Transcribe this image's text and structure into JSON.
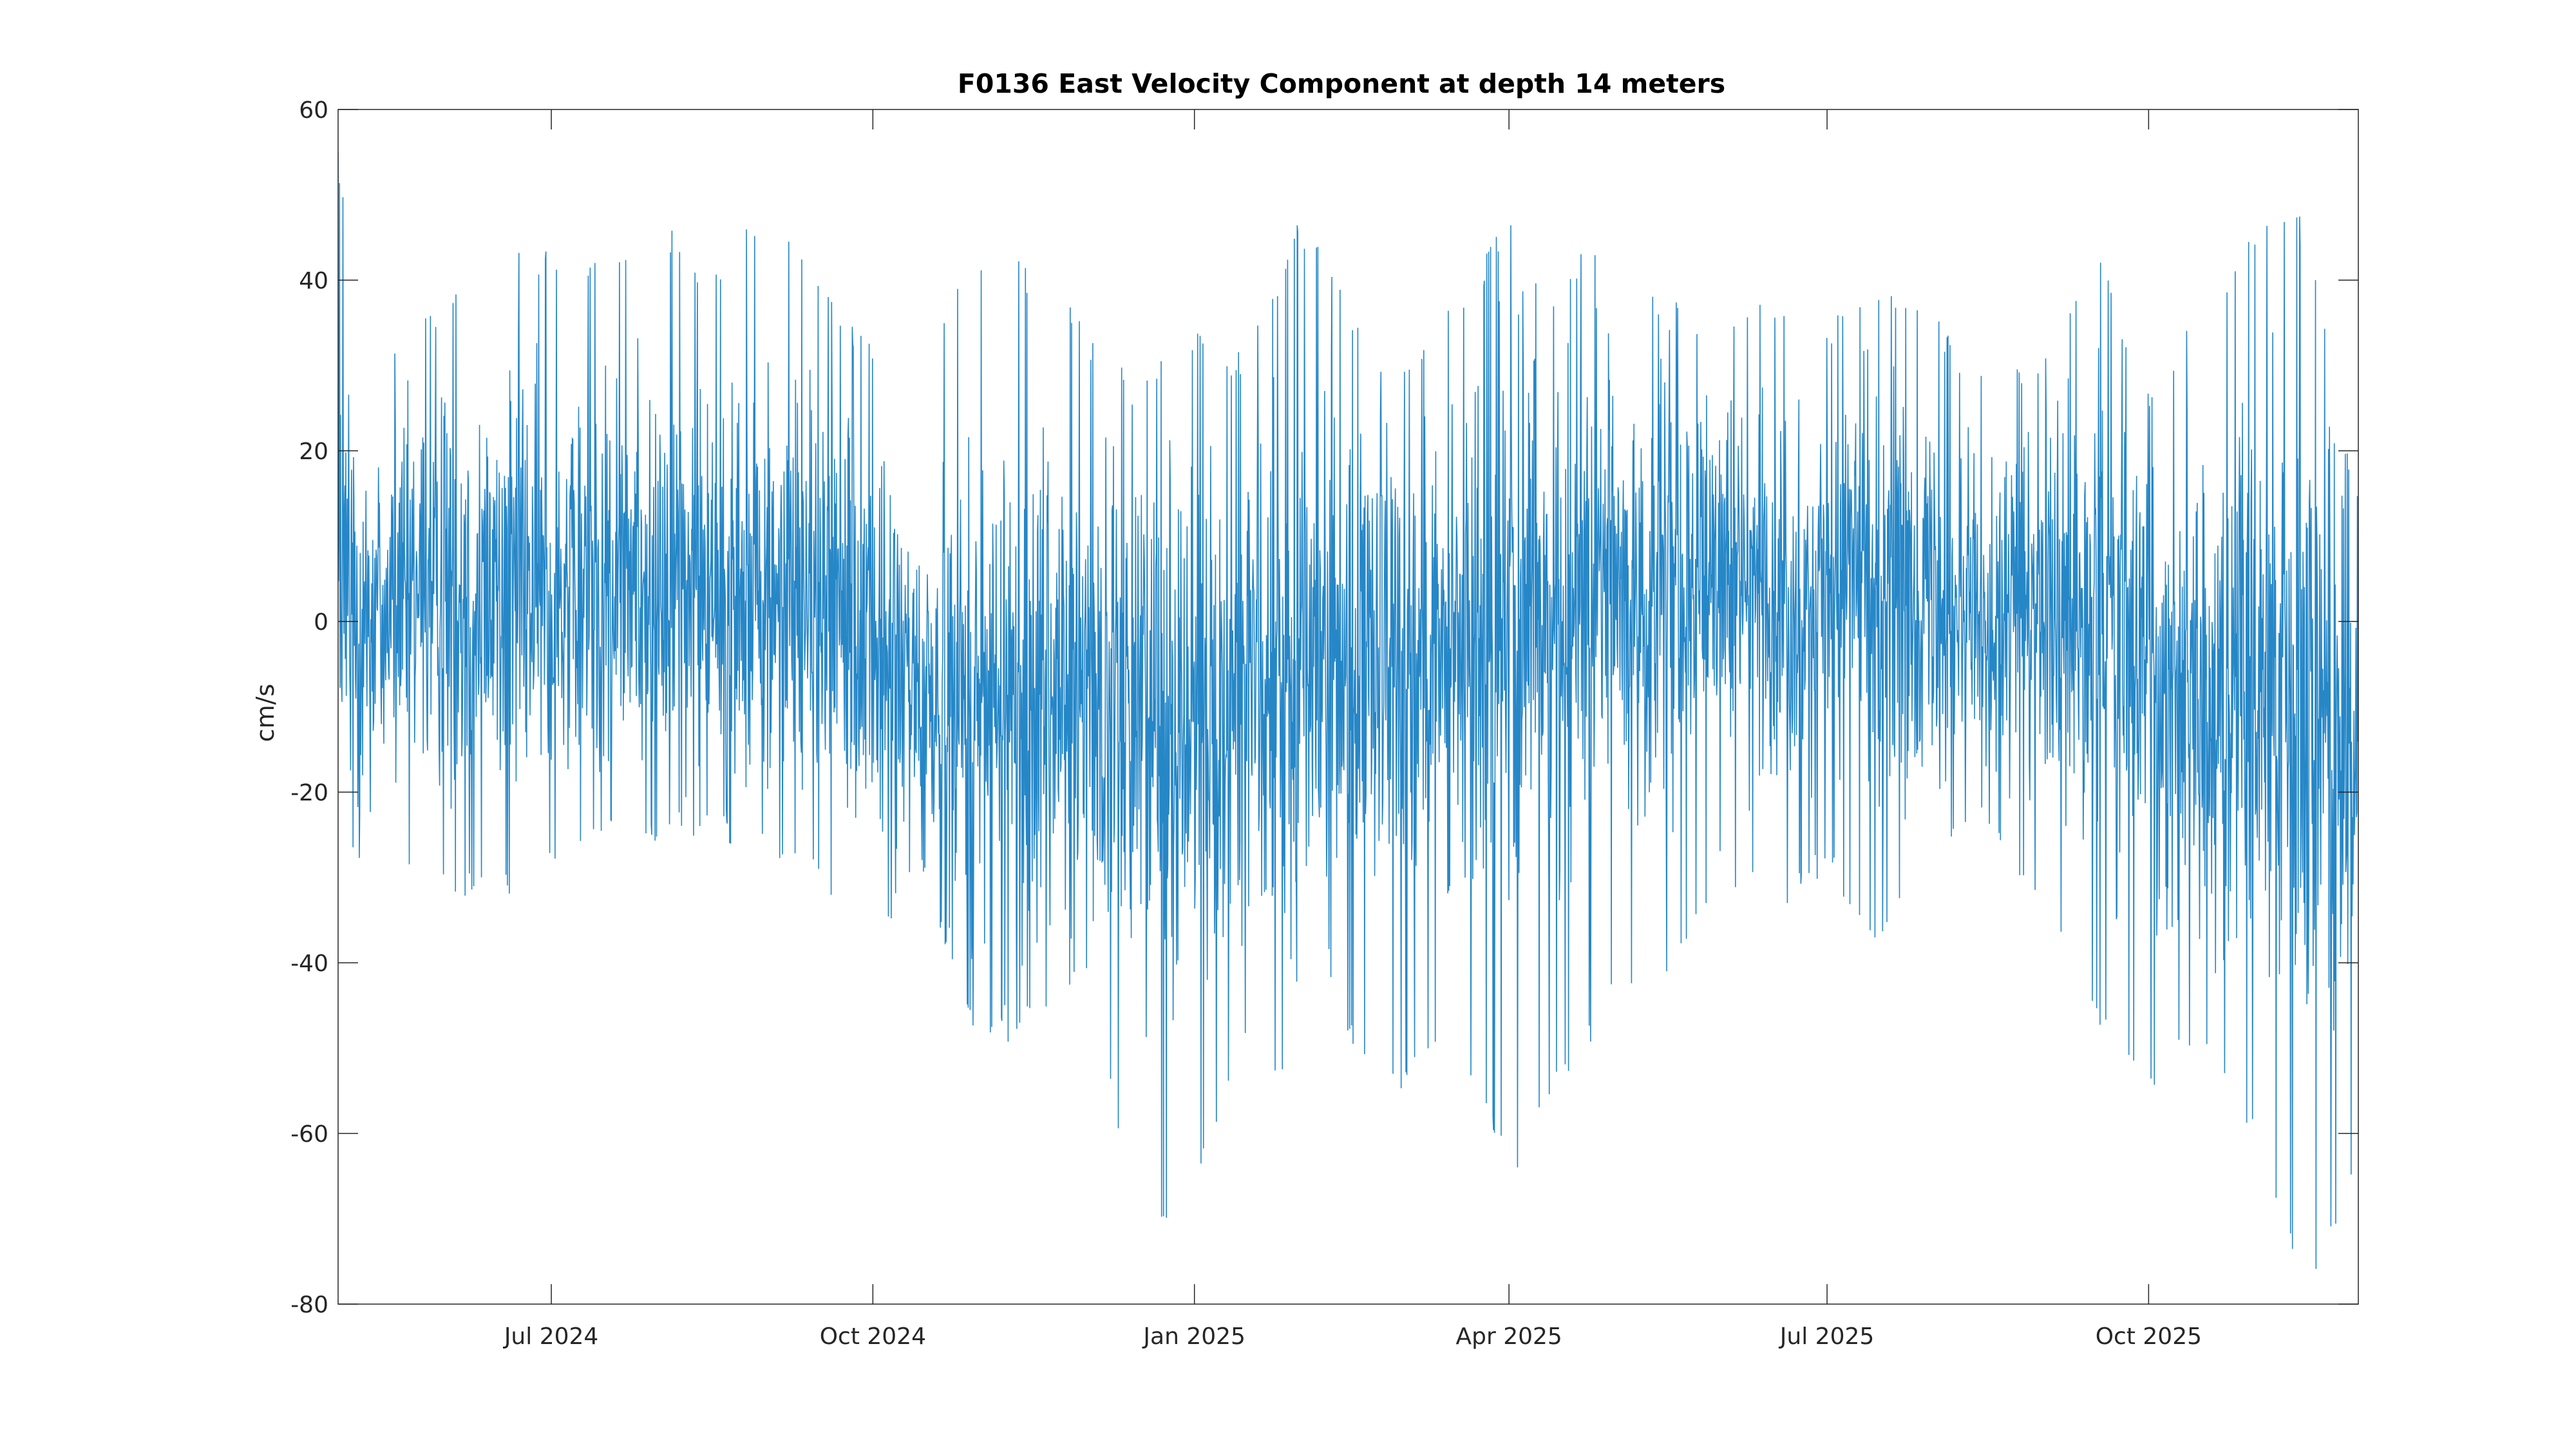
{
  "chart_data": {
    "type": "line",
    "title": "F0136 East Velocity Component at depth 14 meters",
    "xlabel": "",
    "ylabel": "cm/s",
    "xlim": [
      "2024-05-01",
      "2025-11-30"
    ],
    "ylim": [
      -80,
      60
    ],
    "x_ticks": [
      {
        "date": "2024-07-01",
        "label": "Jul 2024"
      },
      {
        "date": "2024-10-01",
        "label": "Oct 2024"
      },
      {
        "date": "2025-01-01",
        "label": "Jan 2025"
      },
      {
        "date": "2025-04-01",
        "label": "Apr 2025"
      },
      {
        "date": "2025-07-01",
        "label": "Jul 2025"
      },
      {
        "date": "2025-10-01",
        "label": "Oct 2025"
      }
    ],
    "y_ticks": [
      -80,
      -60,
      -40,
      -20,
      0,
      20,
      40,
      60
    ],
    "grid": false,
    "legend": "none",
    "series_color": "#0072BD",
    "series": [
      {
        "x": [
          "2024-05-01",
          "2024-05-15",
          "2024-06-01",
          "2024-06-15",
          "2024-07-01",
          "2024-07-15",
          "2024-08-01",
          "2024-08-15",
          "2024-09-01",
          "2024-09-15",
          "2024-10-01",
          "2024-10-15",
          "2024-11-01",
          "2024-11-15",
          "2024-12-01",
          "2024-12-15",
          "2025-01-01",
          "2025-01-15",
          "2025-02-01",
          "2025-02-15",
          "2025-03-01",
          "2025-03-15",
          "2025-04-01",
          "2025-04-15",
          "2025-05-01",
          "2025-05-15",
          "2025-06-01",
          "2025-06-15",
          "2025-07-01",
          "2025-07-15",
          "2025-08-01",
          "2025-08-15",
          "2025-09-01",
          "2025-09-15",
          "2025-10-01",
          "2025-10-15",
          "2025-11-01",
          "2025-11-15",
          "2025-11-30"
        ],
        "max": [
          55,
          33,
          40,
          43,
          45,
          43,
          48,
          42,
          50,
          40,
          33,
          30,
          45,
          42,
          35,
          28,
          34,
          32,
          48,
          38,
          30,
          38,
          47,
          40,
          48,
          38,
          36,
          38,
          36,
          40,
          36,
          30,
          32,
          46,
          28,
          38,
          46,
          48,
          15
        ],
        "min": [
          -45,
          -30,
          -32,
          -33,
          -30,
          -27,
          -27,
          -25,
          -28,
          -32,
          -40,
          -30,
          -52,
          -47,
          -42,
          -73,
          -68,
          -50,
          -58,
          -50,
          -56,
          -48,
          -66,
          -55,
          -46,
          -42,
          -30,
          -35,
          -30,
          -38,
          -28,
          -25,
          -35,
          -48,
          -57,
          -50,
          -63,
          -79,
          -65
        ],
        "mean": [
          0,
          2,
          4,
          5,
          3,
          4,
          5,
          4,
          3,
          2,
          -3,
          -8,
          -10,
          -9,
          -8,
          -10,
          -12,
          -10,
          -8,
          -6,
          -5,
          -6,
          0,
          2,
          3,
          3,
          5,
          4,
          3,
          4,
          3,
          2,
          0,
          -2,
          -5,
          -8,
          -5,
          -10,
          -15
        ]
      }
    ]
  }
}
